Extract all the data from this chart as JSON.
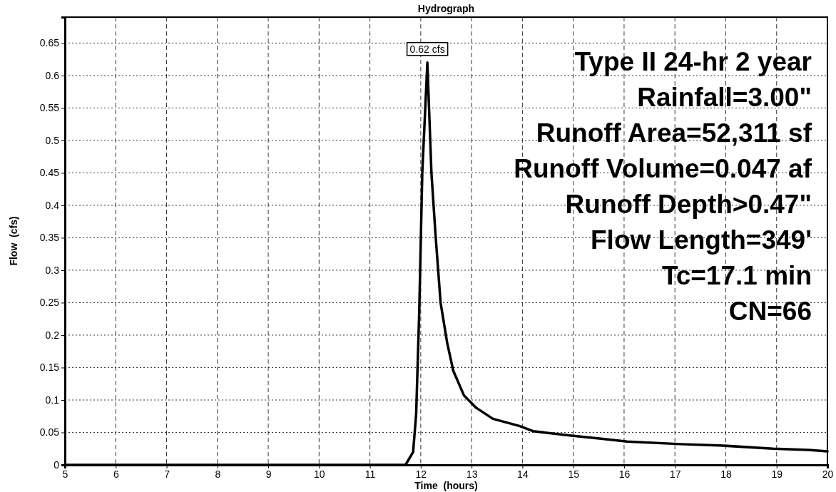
{
  "chart_data": {
    "type": "line",
    "title": "Hydrograph",
    "xlabel": "Time  (hours)",
    "ylabel": "Flow  (cfs)",
    "xlim": [
      5,
      20
    ],
    "xticks": [
      5,
      6,
      7,
      8,
      9,
      10,
      11,
      12,
      13,
      14,
      15,
      16,
      17,
      18,
      19,
      20
    ],
    "ylim": [
      0,
      0.69
    ],
    "yticks": [
      0,
      0.05,
      0.1,
      0.15,
      0.2,
      0.25,
      0.3,
      0.35,
      0.4,
      0.45,
      0.5,
      0.55,
      0.6,
      0.65
    ],
    "grid": true,
    "marker": "none",
    "line_style": "solid",
    "series": [
      {
        "color": "#000000",
        "x": [
          5,
          11.7,
          11.85,
          11.91,
          11.97,
          12.03,
          12.13,
          12.21,
          12.29,
          12.39,
          12.52,
          12.64,
          12.85,
          13.09,
          13.42,
          13.94,
          14.21,
          14.97,
          15.58,
          16.06,
          17.12,
          17.88,
          18.93,
          19.63,
          20
        ],
        "values": [
          0,
          0,
          0.02,
          0.079,
          0.236,
          0.45,
          0.62,
          0.45,
          0.355,
          0.25,
          0.188,
          0.145,
          0.107,
          0.088,
          0.071,
          0.06,
          0.052,
          0.045,
          0.04,
          0.036,
          0.032,
          0.03,
          0.025,
          0.023,
          0.021
        ]
      }
    ],
    "annotations": [
      {
        "text": "0.62 cfs",
        "x": 12.13,
        "y": 0.62
      },
      "Type II 24-hr 2 year",
      "Rainfall=3.00\"",
      "Runoff Area=52,311 sf",
      "Runoff Volume=0.047 af",
      "Runoff Depth>0.47\"",
      "Flow Length=349'",
      "Tc=17.1 min",
      "CN=66"
    ]
  }
}
